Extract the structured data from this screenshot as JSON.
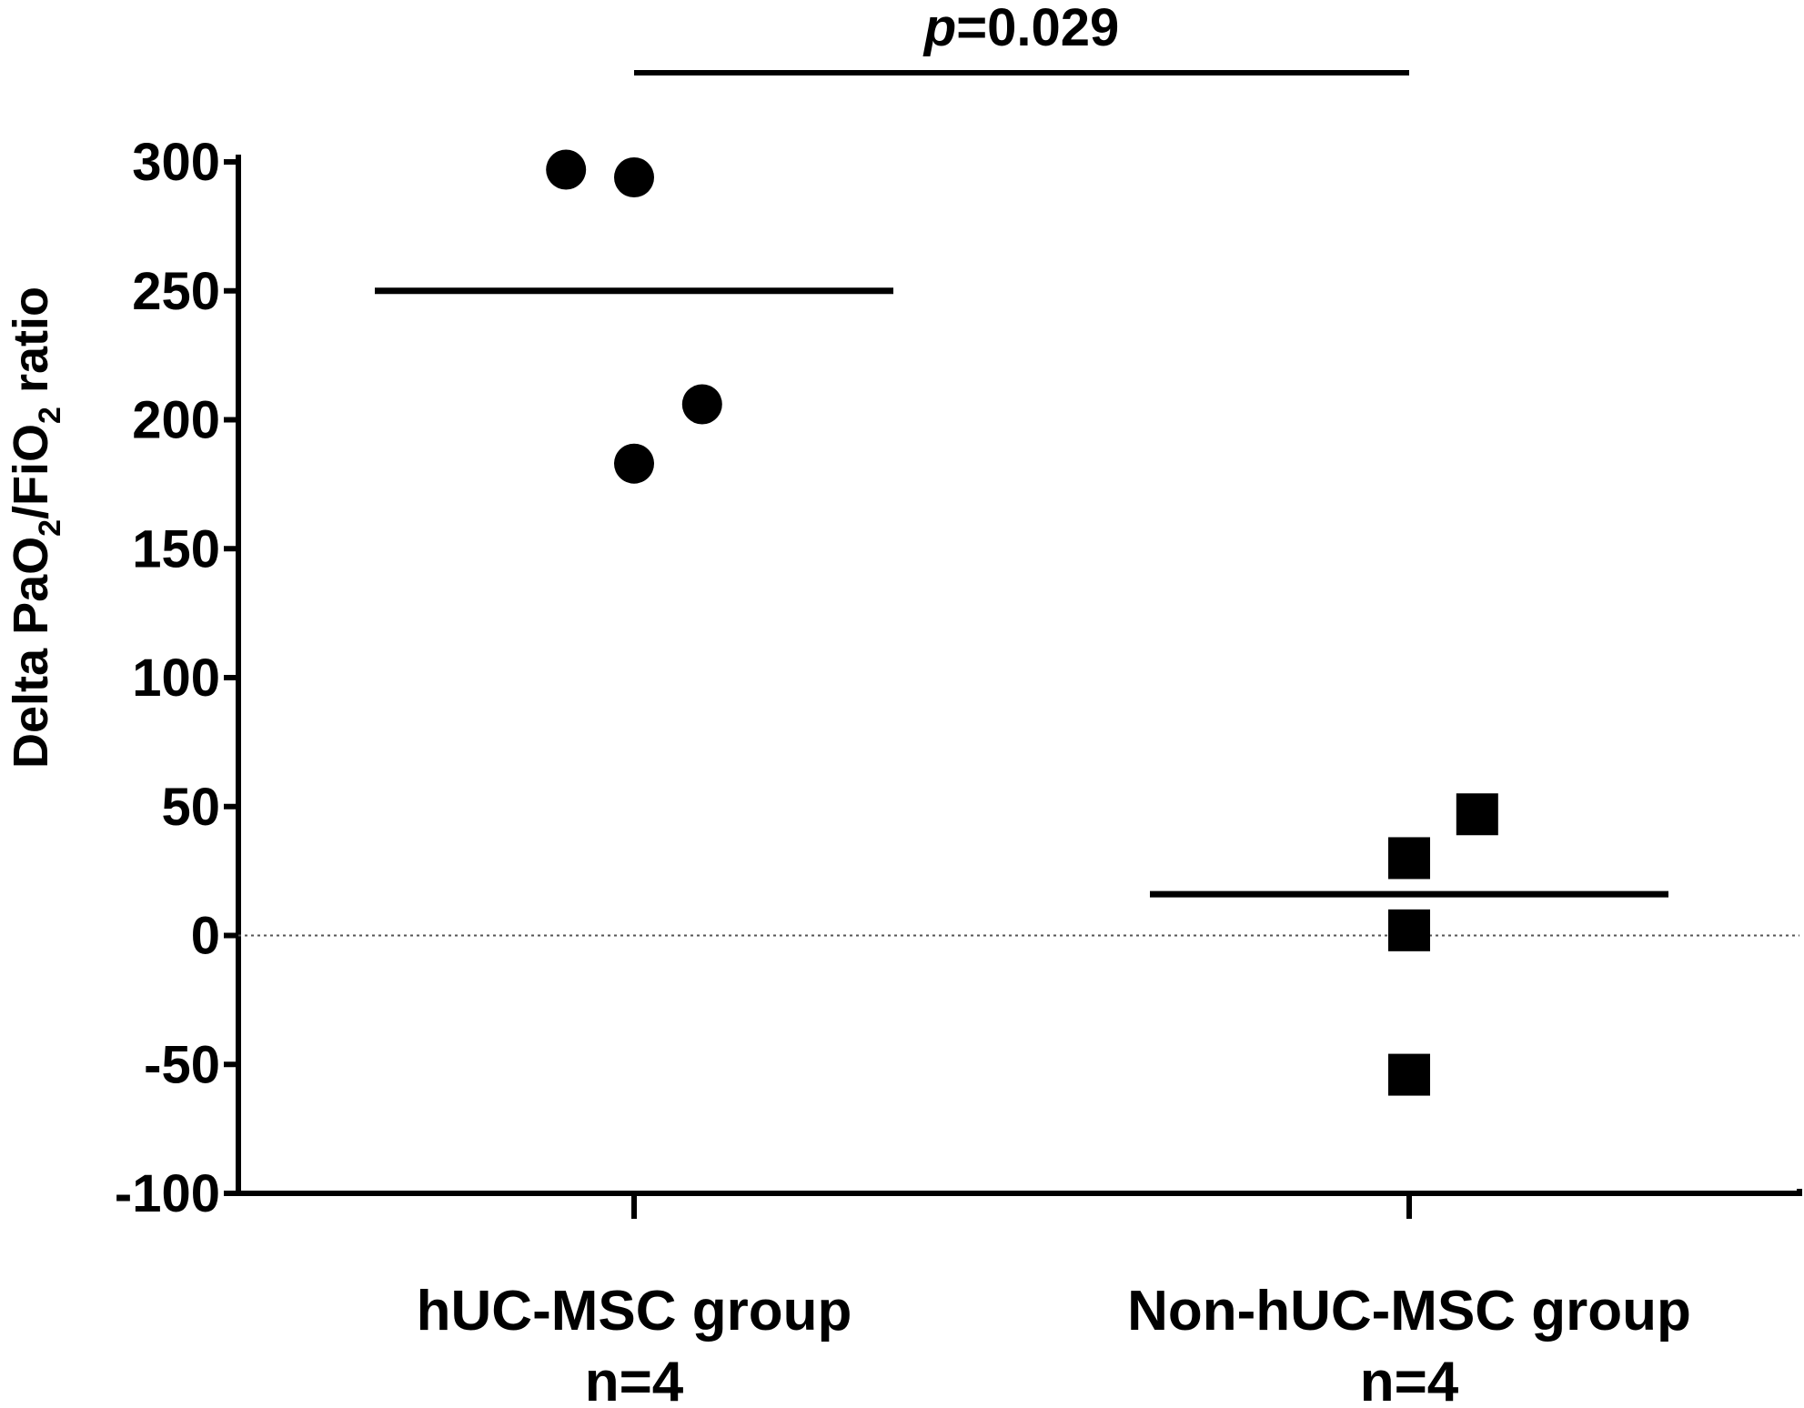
{
  "chart_data": {
    "type": "scatter",
    "title": "",
    "xlabel": "",
    "ylabel": {
      "prefix": "Delta PaO",
      "sub1": "2",
      "middle": "/FiO",
      "sub2": "2",
      "suffix": " ratio"
    },
    "ylim": [
      -100,
      300
    ],
    "yticks": [
      "-100",
      "-50",
      "0",
      "50",
      "100",
      "150",
      "200",
      "250",
      "300"
    ],
    "yticks_values": [
      -100,
      -50,
      0,
      50,
      100,
      150,
      200,
      250,
      300
    ],
    "reference_line": {
      "y": 0,
      "style": "dotted"
    },
    "categories": [
      {
        "label": "hUC-MSC group",
        "n_label": "n=4"
      },
      {
        "label": "Non-hUC-MSC group",
        "n_label": "n=4"
      }
    ],
    "series": [
      {
        "category_index": 0,
        "marker": "circle",
        "values": [
          297,
          294,
          206,
          183
        ],
        "x_offsets": [
          -0.22,
          0.0,
          0.22,
          0.0
        ],
        "mean": 250
      },
      {
        "category_index": 1,
        "marker": "square",
        "values": [
          47,
          30,
          2,
          -54
        ],
        "x_offsets": [
          0.22,
          0.0,
          0.0,
          0.0
        ],
        "mean": 16
      }
    ],
    "significance": {
      "p_italic": "p",
      "p_value": "=0.029",
      "between": [
        0,
        1
      ]
    },
    "grid": false,
    "legend": "none",
    "colors": {
      "marker": "#000000",
      "axis": "#000000"
    }
  }
}
